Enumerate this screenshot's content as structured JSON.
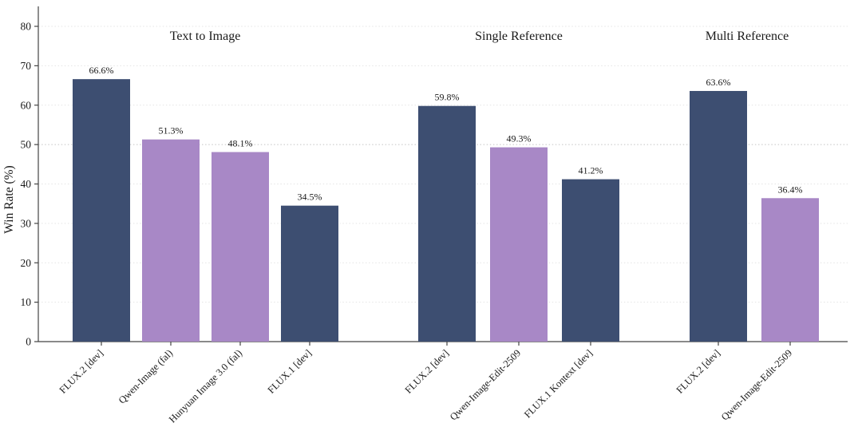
{
  "chart_data": {
    "type": "bar",
    "title": "",
    "ylabel": "Win Rate (%)",
    "ylim": [
      0,
      85
    ],
    "yticks": [
      0,
      10,
      20,
      30,
      40,
      50,
      60,
      70,
      80
    ],
    "grid": "horizontal-dotted",
    "reference_line": 50,
    "legend": "none",
    "palette": {
      "navy": "#3d4e71",
      "purple": "#a888c6"
    },
    "colors": {
      "gridline": "#e4e4e4",
      "reference_gridline": "#c4c4c4",
      "axis": "#444444",
      "text": "#1a1a1a"
    },
    "groups": [
      {
        "title": "Text to Image",
        "bars": [
          {
            "label": "FLUX.2 [dev]",
            "value": 66.6,
            "display": "66.6%",
            "color": "navy"
          },
          {
            "label": "Qwen-Image (fal)",
            "value": 51.3,
            "display": "51.3%",
            "color": "purple"
          },
          {
            "label": "Hunyuan Image 3.0 (fal)",
            "value": 48.1,
            "display": "48.1%",
            "color": "purple"
          },
          {
            "label": "FLUX.1 [dev]",
            "value": 34.5,
            "display": "34.5%",
            "color": "navy"
          }
        ]
      },
      {
        "title": "Single Reference",
        "bars": [
          {
            "label": "FLUX.2 [dev]",
            "value": 59.8,
            "display": "59.8%",
            "color": "navy"
          },
          {
            "label": "Qwen-Image-Edit-2509",
            "value": 49.3,
            "display": "49.3%",
            "color": "purple"
          },
          {
            "label": "FLUX.1 Kontext [dev]",
            "value": 41.2,
            "display": "41.2%",
            "color": "navy"
          }
        ]
      },
      {
        "title": "Multi Reference",
        "bars": [
          {
            "label": "FLUX.2 [dev]",
            "value": 63.6,
            "display": "63.6%",
            "color": "navy"
          },
          {
            "label": "Qwen-Image-Edit-2509",
            "value": 36.4,
            "display": "36.4%",
            "color": "purple"
          }
        ]
      }
    ]
  }
}
